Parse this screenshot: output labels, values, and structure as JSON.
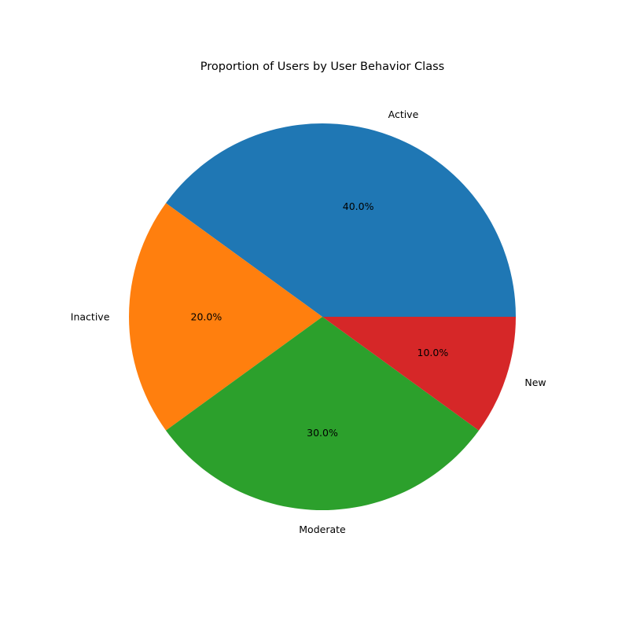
{
  "chart_data": {
    "type": "pie",
    "title": "Proportion of Users by User Behavior Class",
    "slices": [
      {
        "label": "Active",
        "value": 40.0,
        "pct_label": "40.0%",
        "color": "#1f77b4"
      },
      {
        "label": "Inactive",
        "value": 20.0,
        "pct_label": "20.0%",
        "color": "#ff7f0e"
      },
      {
        "label": "Moderate",
        "value": 30.0,
        "pct_label": "30.0%",
        "color": "#2ca02c"
      },
      {
        "label": "New",
        "value": 10.0,
        "pct_label": "10.0%",
        "color": "#d62728"
      }
    ],
    "start_angle_deg": 0,
    "direction": "counterclockwise",
    "legend": "none"
  }
}
